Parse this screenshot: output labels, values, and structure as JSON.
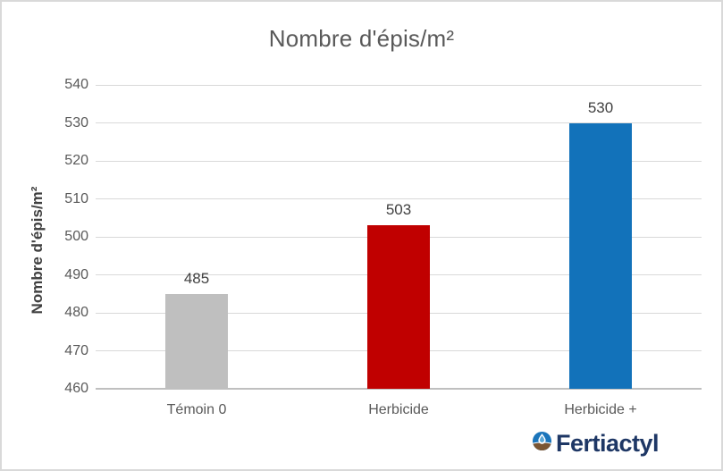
{
  "chart": {
    "title": "Nombre d'épis/m²",
    "y_axis_title": "Nombre d'épis/m²"
  },
  "logo": {
    "text": "Fertiactyl",
    "icon": "globe-droplet-soil-icon"
  },
  "colors": {
    "gridline": "#d9d9d9",
    "axis_line": "#bfbfbf",
    "title_text": "#595959",
    "value_label_text": "#404040",
    "logo_navy": "#1e3765",
    "logo_blue": "#1b75bb",
    "logo_brown": "#7a5533"
  },
  "chart_data": {
    "type": "bar",
    "title": "Nombre d'épis/m²",
    "xlabel": "",
    "ylabel": "Nombre d'épis/m²",
    "categories": [
      "Témoin 0",
      "Herbicide",
      "Herbicide +"
    ],
    "values": [
      485,
      503,
      530
    ],
    "data_labels": [
      "485",
      "503",
      "530"
    ],
    "bar_colors": [
      "#bfbfbf",
      "#c00000",
      "#1272ba"
    ],
    "ylim": [
      460,
      540
    ],
    "yticks": [
      460,
      470,
      480,
      490,
      500,
      510,
      520,
      530,
      540
    ],
    "grid": true,
    "legend_position": "none"
  }
}
